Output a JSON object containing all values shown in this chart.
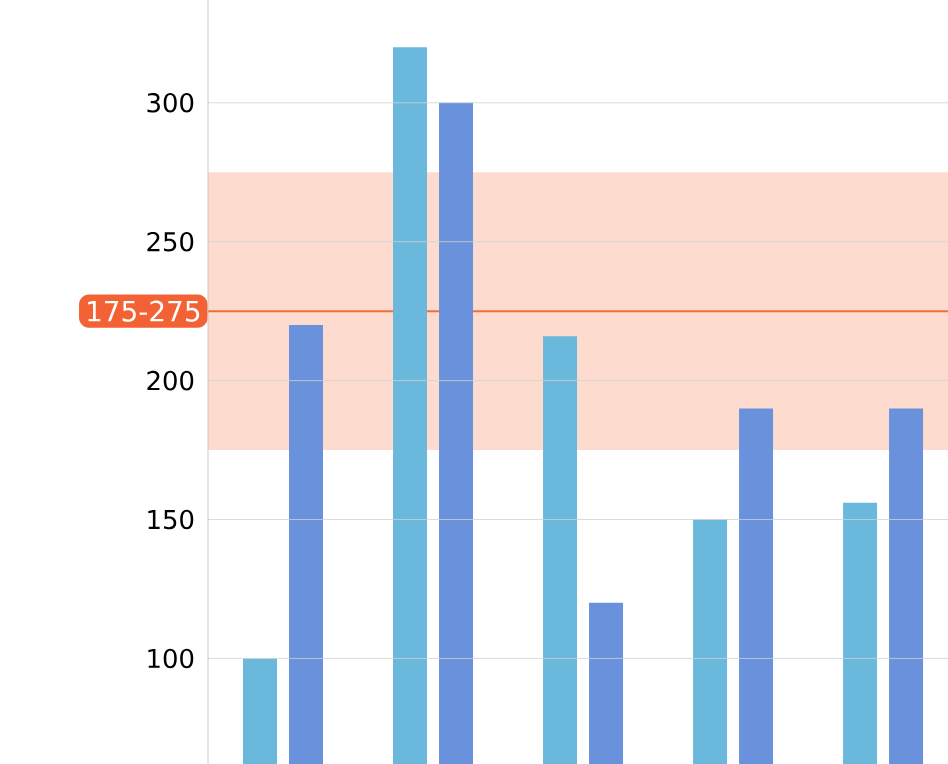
{
  "chart_data": {
    "type": "bar",
    "categories": [
      null,
      null,
      null,
      null,
      null
    ],
    "series": [
      {
        "color": "#6ab8dc",
        "values": [
          100,
          320,
          216,
          150,
          156
        ]
      },
      {
        "color": "#6a92dc",
        "values": [
          220,
          300,
          120,
          190,
          190
        ]
      }
    ],
    "ylim": [
      62,
      337
    ],
    "yticks": [
      100,
      150,
      200,
      250,
      300
    ],
    "grid": true,
    "tick_labels": "y",
    "bands": [
      {
        "axis": "y",
        "from": 175,
        "to": 275,
        "label": "175-275",
        "color": "#fddccf"
      }
    ],
    "ref_lines": [
      {
        "axis": "y",
        "value": 225,
        "color": "#f26b3a"
      }
    ]
  }
}
